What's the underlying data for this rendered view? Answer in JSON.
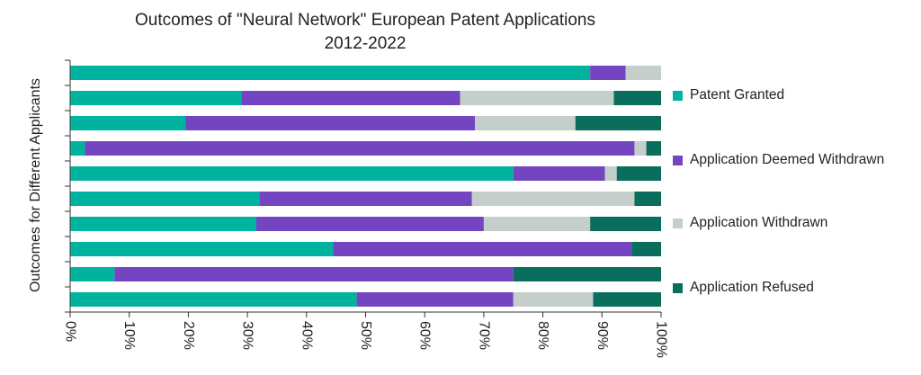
{
  "chart_data": {
    "type": "bar",
    "orientation": "horizontal",
    "stacked": true,
    "percent": true,
    "title": [
      "Outcomes of \"Neural Network\" European Patent Applications",
      "2012-2022"
    ],
    "ylabel": "Outcomes for Different Applicants",
    "xlabel": "",
    "xlim": [
      0,
      100
    ],
    "x_ticks": [
      "0%",
      "10%",
      "20%",
      "30%",
      "40%",
      "50%",
      "60%",
      "70%",
      "80%",
      "90%",
      "100%"
    ],
    "grid": false,
    "legend_position": "right",
    "colors": {
      "Patent Granted": "#00b39e",
      "Application Deemed Withdrawn": "#7445c0",
      "Application Withdrawn": "#c4cfc9",
      "Application Refused": "#0a6e5d"
    },
    "series": [
      {
        "name": "Patent Granted",
        "values": [
          88,
          29,
          19.5,
          2.5,
          75,
          32,
          31.5,
          44.5,
          7.5,
          48.5
        ]
      },
      {
        "name": "Application Deemed Withdrawn",
        "values": [
          6,
          37,
          49,
          93,
          15.5,
          36,
          38.5,
          50.5,
          67.5,
          26.5
        ]
      },
      {
        "name": "Application Withdrawn",
        "values": [
          6,
          26,
          17,
          2,
          2,
          27.5,
          18,
          0,
          0,
          13.5
        ]
      },
      {
        "name": "Application Refused",
        "values": [
          0,
          8,
          14.5,
          2.5,
          7.5,
          4.5,
          12,
          5,
          25,
          11.5
        ]
      }
    ]
  }
}
